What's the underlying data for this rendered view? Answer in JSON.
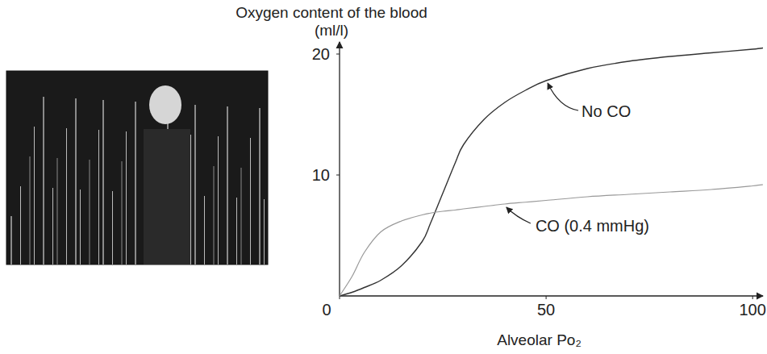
{
  "chart_data": {
    "type": "line",
    "ylabel": "Oxygen content of the blood",
    "ylabel_unit": "(ml/l)",
    "xlabel": "Alveolar Po₂",
    "x": [
      0,
      3,
      6,
      10,
      15,
      20,
      22,
      25,
      28,
      30,
      35,
      40,
      45,
      50,
      60,
      70,
      80,
      90,
      100,
      102.5
    ],
    "series": [
      {
        "name": "No CO",
        "color": "#333333",
        "values": [
          0,
          0.3,
          0.7,
          1.3,
          2.5,
          4.5,
          6,
          8.5,
          11,
          12.5,
          14.6,
          16,
          17,
          17.8,
          18.8,
          19.4,
          19.8,
          20.1,
          20.4,
          20.5
        ]
      },
      {
        "name": "CO (0.4 mmHg)",
        "color": "#999999",
        "values": [
          0,
          1.6,
          3.6,
          5.3,
          6.2,
          6.7,
          6.85,
          7,
          7.1,
          7.2,
          7.4,
          7.6,
          7.75,
          7.9,
          8.2,
          8.4,
          8.6,
          8.8,
          9.1,
          9.2
        ]
      }
    ],
    "xlim": [
      0,
      102.5
    ],
    "ylim": [
      0,
      21
    ],
    "xticks": [
      0,
      50,
      100
    ],
    "yticks": [
      10,
      20
    ]
  }
}
